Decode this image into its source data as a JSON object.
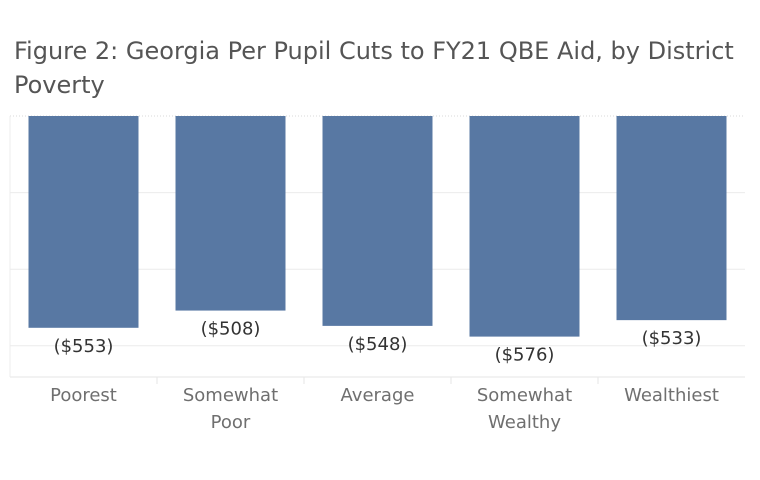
{
  "chart_data": {
    "type": "bar",
    "title": "Figure 2: Georgia Per Pupil Cuts to  FY21 QBE Aid, by District Poverty",
    "categories": [
      [
        "Poorest"
      ],
      [
        "Somewhat",
        "Poor"
      ],
      [
        "Average"
      ],
      [
        "Somewhat",
        "Wealthy"
      ],
      [
        "Wealthiest"
      ]
    ],
    "values": [
      -553,
      -508,
      -548,
      -576,
      -533
    ],
    "data_labels": [
      "($553)",
      "($508)",
      "($548)",
      "($576)",
      "($533)"
    ],
    "xlabel": "",
    "ylabel": "",
    "bar_color": "#5878a3",
    "grid_color": "#ececec",
    "grid": true
  }
}
